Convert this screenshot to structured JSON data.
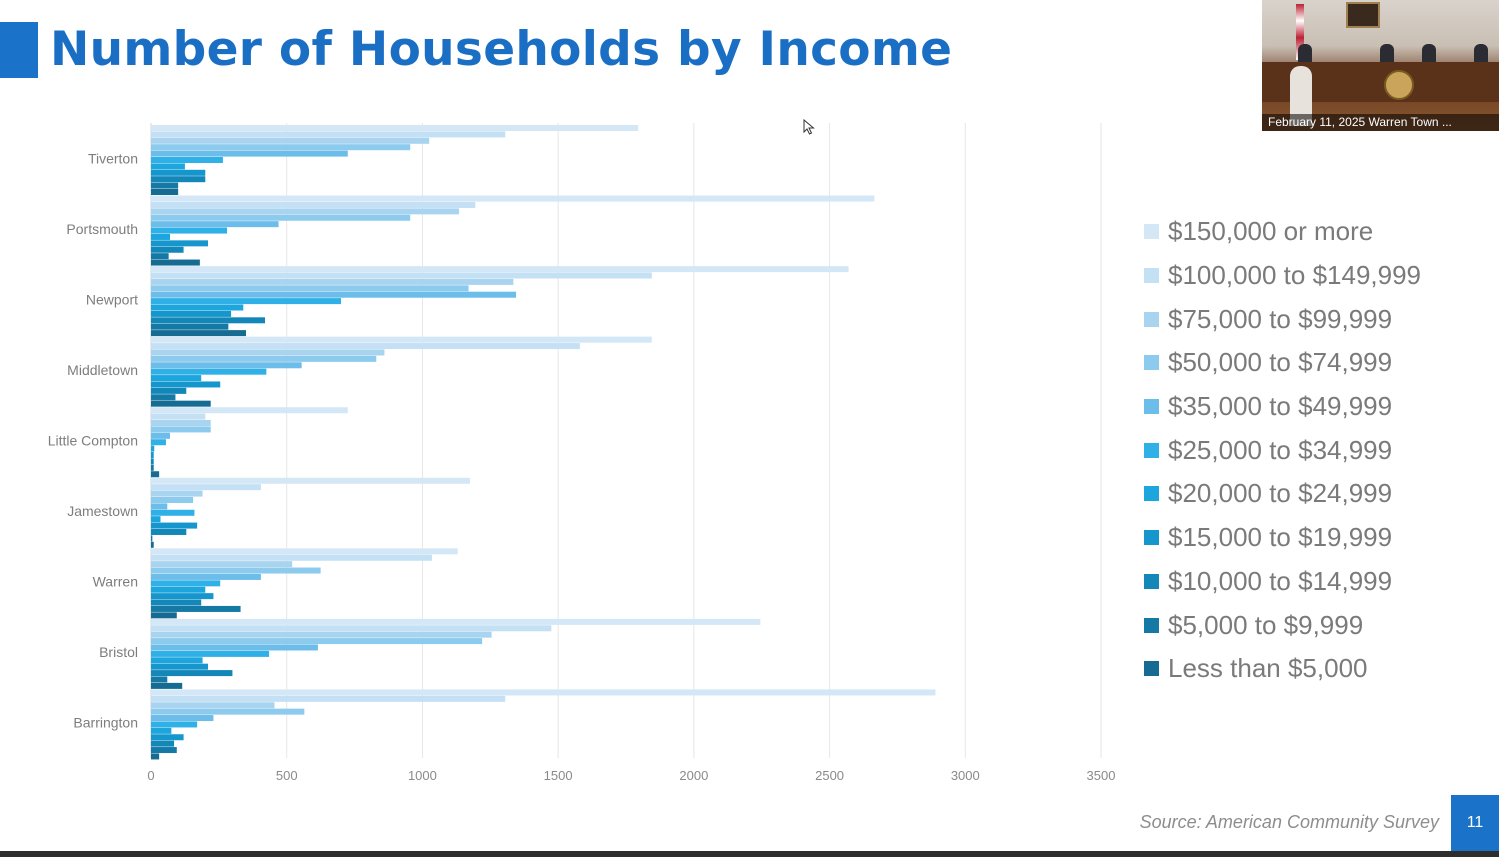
{
  "slide": {
    "title": "Number of Households by Income",
    "source": "Source: American Community Survey",
    "page_number": "11",
    "accent_color": "#1a73c8",
    "title_color": "#1a6fc4"
  },
  "video_thumbnail": {
    "caption": "February 11, 2025 Warren Town ..."
  },
  "chart_data": {
    "type": "bar",
    "orientation": "horizontal",
    "title": "",
    "xlabel": "",
    "ylabel": "",
    "xlim": [
      0,
      3500
    ],
    "xticks": [
      0,
      500,
      1000,
      1500,
      2000,
      2500,
      3000,
      3500
    ],
    "grid": true,
    "legend_position": "right",
    "categories": [
      "Tiverton",
      "Portsmouth",
      "Newport",
      "Middletown",
      "Little Compton",
      "Jamestown",
      "Warren",
      "Bristol",
      "Barrington"
    ],
    "series": [
      {
        "name": "$150,000 or more",
        "color": "#d3e7f6",
        "values": [
          1795,
          2665,
          2570,
          1845,
          725,
          1175,
          1130,
          2245,
          2890
        ]
      },
      {
        "name": "$100,000 to $149,999",
        "color": "#c3e0f4",
        "values": [
          1305,
          1195,
          1845,
          1580,
          200,
          405,
          1035,
          1475,
          1305
        ]
      },
      {
        "name": "$75,000 to $99,999",
        "color": "#a9d4f0",
        "values": [
          1025,
          1135,
          1335,
          860,
          220,
          190,
          520,
          1255,
          455
        ]
      },
      {
        "name": "$50,000 to $74,999",
        "color": "#8ccbed",
        "values": [
          955,
          955,
          1170,
          830,
          220,
          155,
          625,
          1220,
          565
        ]
      },
      {
        "name": "$35,000 to $49,999",
        "color": "#6cbde9",
        "values": [
          725,
          470,
          1345,
          555,
          70,
          60,
          405,
          615,
          230
        ]
      },
      {
        "name": "$25,000 to $34,999",
        "color": "#2fb0e6",
        "values": [
          265,
          280,
          700,
          425,
          55,
          160,
          255,
          435,
          170
        ]
      },
      {
        "name": "$20,000 to $24,999",
        "color": "#1ca6dd",
        "values": [
          125,
          70,
          340,
          185,
          12,
          35,
          200,
          190,
          75
        ]
      },
      {
        "name": "$15,000 to $19,999",
        "color": "#1596cc",
        "values": [
          200,
          210,
          295,
          255,
          10,
          170,
          230,
          210,
          120
        ]
      },
      {
        "name": "$10,000 to $14,999",
        "color": "#1487b9",
        "values": [
          200,
          120,
          420,
          130,
          10,
          130,
          185,
          300,
          85
        ]
      },
      {
        "name": "$5,000 to $9,999",
        "color": "#1579a5",
        "values": [
          100,
          65,
          285,
          90,
          10,
          5,
          330,
          60,
          95
        ]
      },
      {
        "name": "Less than $5,000",
        "color": "#156b92",
        "values": [
          100,
          180,
          350,
          220,
          30,
          10,
          95,
          115,
          30
        ]
      }
    ]
  }
}
